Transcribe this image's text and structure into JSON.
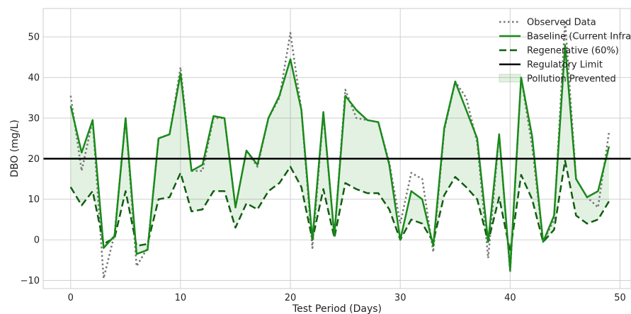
{
  "chart_data": {
    "type": "line",
    "title": "",
    "xlabel": "Test Period (Days)",
    "ylabel": "DBO (mg/L)",
    "xlim": [
      -2.5,
      51
    ],
    "ylim": [
      -12,
      57
    ],
    "xticks": [
      0,
      10,
      20,
      30,
      40,
      50
    ],
    "yticks": [
      -10,
      0,
      10,
      20,
      30,
      40,
      50
    ],
    "grid": true,
    "legend_position": "top-right",
    "x": [
      0,
      1,
      2,
      3,
      4,
      5,
      6,
      7,
      8,
      9,
      10,
      11,
      12,
      13,
      14,
      15,
      16,
      17,
      18,
      19,
      20,
      21,
      22,
      23,
      24,
      25,
      26,
      27,
      28,
      29,
      30,
      31,
      32,
      33,
      34,
      35,
      36,
      37,
      38,
      39,
      40,
      41,
      42,
      43,
      44,
      45,
      46,
      47,
      48,
      49
    ],
    "series": [
      {
        "name": "Observed Data",
        "style": "dotted",
        "color": "#777777",
        "values": [
          35.5,
          17,
          29.5,
          -9.5,
          1.5,
          30,
          -6.5,
          -2,
          25,
          26,
          42.5,
          17,
          17,
          30,
          30,
          8,
          22,
          18,
          30,
          35,
          51,
          32,
          -2,
          31,
          1,
          37,
          30,
          29.5,
          29,
          19,
          4,
          16.5,
          15,
          -3,
          27,
          39,
          35,
          24,
          -4.5,
          26,
          -8,
          40,
          23,
          -0.5,
          5,
          54,
          15,
          10.5,
          8,
          26.5
        ]
      },
      {
        "name": "Baseline (Current Infra)",
        "style": "solid",
        "color": "#1a8a1a",
        "values": [
          33,
          21.5,
          29.5,
          -2,
          1,
          30,
          -3.5,
          -2.5,
          25,
          26,
          41,
          17,
          18.5,
          30.5,
          30,
          8,
          22,
          18.5,
          30,
          35.5,
          44.5,
          32,
          0,
          31.5,
          1,
          35.5,
          32,
          29.5,
          29,
          18.5,
          0,
          12,
          10,
          -1.5,
          27.5,
          39,
          32,
          25,
          -0.5,
          26,
          -7.5,
          40,
          25.5,
          -0.5,
          6,
          48,
          15,
          10.5,
          12,
          23
        ]
      },
      {
        "name": "Regenerative (60%)",
        "style": "dashed",
        "color": "#0f5e0f",
        "values": [
          13,
          8.5,
          12,
          -1,
          0.5,
          12,
          -1.5,
          -1,
          10,
          10.5,
          16.5,
          7,
          7.5,
          12,
          12,
          3,
          9,
          7.5,
          12,
          14,
          18,
          13,
          0,
          12.5,
          0.5,
          14,
          12.5,
          11.5,
          11.5,
          7.5,
          0,
          5,
          4,
          -0.5,
          11,
          15.5,
          13,
          10,
          -0.5,
          10.5,
          -3,
          16,
          10,
          -0.5,
          2.5,
          19.5,
          6,
          4,
          5,
          9.5
        ]
      }
    ],
    "reference_lines": [
      {
        "name": "Regulatory Limit",
        "y": 20,
        "color": "#000000"
      }
    ],
    "fill": {
      "name": "Pollution Prevented",
      "between": [
        "Baseline (Current Infra)",
        "Regenerative (60%)"
      ],
      "color": "#1a8a1a",
      "opacity": 0.12
    }
  }
}
